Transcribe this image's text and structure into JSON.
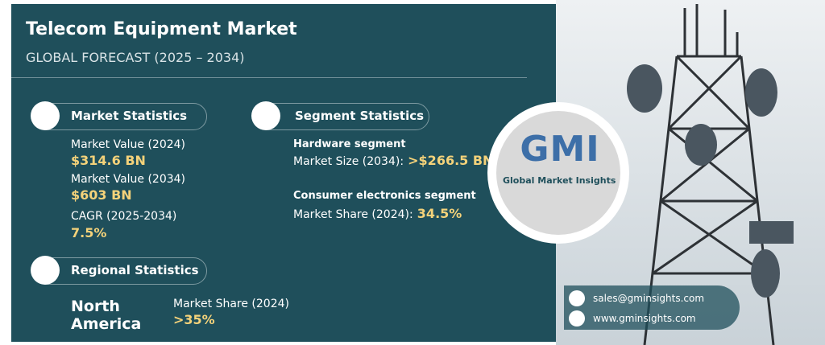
{
  "header": {
    "title": "Telecom Equipment Market",
    "subtitle": "GLOBAL FORECAST (2025 – 2034)"
  },
  "market_statistics": {
    "title": "Market Statistics",
    "items": [
      {
        "label": "Market Value (2024)",
        "value": "$314.6 BN"
      },
      {
        "label": "Market Value (2034)",
        "value": "$603 BN"
      },
      {
        "label": "CAGR (2025-2034)",
        "value": "7.5%"
      }
    ]
  },
  "segment_statistics": {
    "title": "Segment Statistics",
    "items": [
      {
        "segment": "Hardware segment",
        "label": "Market Size (2034):",
        "value": ">$266.5 BN"
      },
      {
        "segment": "Consumer electronics segment",
        "label": "Market Share (2024):",
        "value": "34.5%"
      }
    ]
  },
  "regional_statistics": {
    "title": "Regional Statistics",
    "region": "North America",
    "label": "Market Share (2024)",
    "value": ">35%"
  },
  "logo": {
    "mark": "GMI",
    "name": "Global Market Insights"
  },
  "contacts": {
    "email": "sales@gminsights.com",
    "website": "www.gminsights.com"
  }
}
